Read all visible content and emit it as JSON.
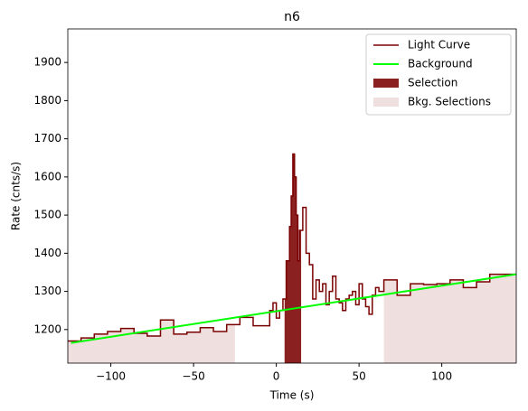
{
  "chart_data": {
    "type": "step",
    "title": "n6",
    "x_label": "Time (s)",
    "y_label": "Rate (cnts/s)",
    "xlim": [
      -126,
      145
    ],
    "ylim": [
      1112,
      1988
    ],
    "xticks": [
      {
        "value": -100,
        "label": "−100"
      },
      {
        "value": -50,
        "label": "−50"
      },
      0,
      50,
      100
    ],
    "yticks": [
      1200,
      1300,
      1400,
      1500,
      1600,
      1700,
      1800,
      1900
    ],
    "legend": "upper right",
    "series": [
      {
        "name": "Light Curve",
        "color": "#7a0000",
        "x": [
          -126,
          -118,
          -110,
          -102,
          -94,
          -86,
          -78,
          -70,
          -62,
          -54,
          -46,
          -38,
          -30,
          -22,
          -14,
          -6,
          -4,
          -2,
          0,
          2,
          4,
          6,
          8,
          9,
          10,
          11,
          12,
          13,
          14,
          16,
          18,
          20,
          22,
          24,
          26,
          28,
          30,
          32,
          34,
          36,
          38,
          40,
          42,
          44,
          46,
          48,
          50,
          52,
          54,
          56,
          58,
          60,
          62,
          65,
          73,
          81,
          89,
          97,
          105,
          113,
          121,
          129,
          145
        ],
        "values": [
          1170,
          1178,
          1188,
          1195,
          1203,
          1190,
          1183,
          1225,
          1188,
          1193,
          1205,
          1195,
          1213,
          1232,
          1210,
          1210,
          1250,
          1270,
          1230,
          1250,
          1280,
          1380,
          1470,
          1550,
          1660,
          1600,
          1500,
          1380,
          1460,
          1520,
          1400,
          1370,
          1280,
          1330,
          1300,
          1320,
          1265,
          1300,
          1340,
          1280,
          1270,
          1250,
          1280,
          1290,
          1300,
          1265,
          1320,
          1280,
          1260,
          1240,
          1290,
          1310,
          1300,
          1330,
          1290,
          1320,
          1318,
          1320,
          1330,
          1310,
          1325,
          1345,
          1345
        ]
      },
      {
        "name": "Background",
        "color": "#00ff00",
        "x": [
          -124,
          145
        ],
        "values": [
          1165,
          1345
        ]
      }
    ],
    "selection": {
      "name": "Selection",
      "color": "#8b2020",
      "range": [
        5,
        15
      ]
    },
    "bkg_selections": {
      "name": "Bkg. Selections",
      "color": "#efdfdf",
      "ranges": [
        [
          -126,
          -25
        ],
        [
          65,
          145
        ]
      ]
    }
  }
}
